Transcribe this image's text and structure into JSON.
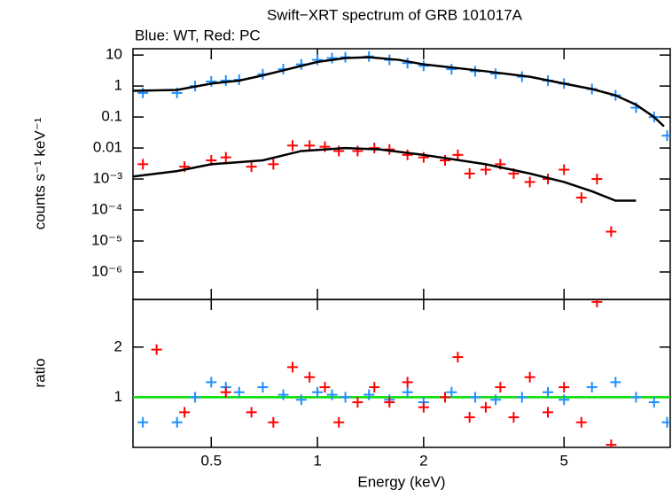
{
  "chart_data": [
    {
      "type": "scatter",
      "title": "Swift−XRT spectrum of GRB 101017A",
      "subtitle": "Blue: WT, Red: PC",
      "ylabel": "counts s⁻¹ keV⁻¹",
      "log_x": true,
      "log_y": true,
      "xlim": [
        0.3,
        10
      ],
      "xticks": [
        0.5,
        1,
        2,
        5
      ],
      "ylim": [
        1.3e-07,
        16
      ],
      "yticks": [
        10,
        1,
        0.1,
        0.01,
        {
          "value": 0.001,
          "label": "10⁻³"
        },
        {
          "value": 0.0001,
          "label": "10⁻⁴"
        },
        {
          "value": 1e-05,
          "label": "10⁻⁵"
        },
        {
          "value": 1e-06,
          "label": "10⁻⁶"
        }
      ],
      "series": [
        {
          "color": "#1e8fff",
          "x": [
            0.32,
            0.4,
            0.45,
            0.5,
            0.55,
            0.6,
            0.7,
            0.8,
            0.9,
            1.0,
            1.1,
            1.2,
            1.4,
            1.6,
            1.8,
            2.0,
            2.4,
            2.8,
            3.2,
            3.8,
            4.5,
            5,
            6,
            7,
            8,
            9,
            9.8
          ],
          "values": [
            0.6,
            0.6,
            1.0,
            1.4,
            1.5,
            1.6,
            2.4,
            3.5,
            5,
            7,
            8,
            8.5,
            9,
            7,
            5.5,
            4.5,
            3.5,
            3,
            2.5,
            2,
            1.5,
            1.2,
            0.8,
            0.5,
            0.2,
            0.1,
            0.025
          ]
        },
        {
          "color": "#ff0000",
          "x": [
            0.32,
            0.42,
            0.5,
            0.55,
            0.65,
            0.75,
            0.85,
            0.95,
            1.05,
            1.15,
            1.3,
            1.45,
            1.6,
            1.8,
            2.0,
            2.3,
            2.5,
            2.7,
            3.0,
            3.3,
            3.6,
            4.0,
            4.5,
            5.0,
            5.6,
            6.2,
            6.8
          ],
          "values": [
            0.003,
            0.0025,
            0.004,
            0.005,
            0.0025,
            0.003,
            0.012,
            0.012,
            0.011,
            0.008,
            0.008,
            0.01,
            0.009,
            0.006,
            0.005,
            0.004,
            0.006,
            0.0015,
            0.002,
            0.003,
            0.0015,
            0.0008,
            0.001,
            0.002,
            0.00025,
            0.001,
            2e-05
          ]
        }
      ],
      "models": [
        {
          "color": "#000000",
          "x": [
            0.3,
            0.4,
            0.5,
            0.6,
            0.7,
            0.8,
            1,
            1.2,
            1.4,
            1.7,
            2,
            3,
            4,
            5,
            6,
            7,
            8,
            9,
            9.6
          ],
          "values": [
            0.7,
            0.75,
            1.2,
            1.5,
            2.2,
            3.2,
            6,
            8,
            8.5,
            7,
            5,
            3,
            2,
            1.2,
            0.8,
            0.5,
            0.25,
            0.1,
            0.05
          ]
        },
        {
          "color": "#000000",
          "x": [
            0.3,
            0.4,
            0.5,
            0.7,
            0.9,
            1.2,
            1.5,
            2,
            3,
            4,
            5,
            6,
            7,
            8
          ],
          "values": [
            0.0012,
            0.0018,
            0.003,
            0.004,
            0.008,
            0.01,
            0.009,
            0.006,
            0.003,
            0.0015,
            0.0008,
            0.0004,
            0.0002,
            0.0002
          ]
        }
      ]
    },
    {
      "type": "scatter",
      "xlabel": "Energy (keV)",
      "ylabel": "ratio",
      "log_x": true,
      "log_y": false,
      "xlim": [
        0.3,
        10
      ],
      "xticks": [
        0.5,
        1,
        2,
        5
      ],
      "ylim": [
        0,
        2.95
      ],
      "yticks": [
        1,
        2
      ],
      "reference_line": {
        "value": 1,
        "color": "#00e000"
      },
      "series": [
        {
          "color": "#1e8fff",
          "x": [
            0.32,
            0.4,
            0.45,
            0.5,
            0.55,
            0.6,
            0.7,
            0.8,
            0.9,
            1.0,
            1.1,
            1.2,
            1.4,
            1.6,
            1.8,
            2.0,
            2.4,
            2.8,
            3.2,
            3.8,
            4.5,
            5,
            6,
            7,
            8,
            9,
            9.8
          ],
          "values": [
            0.5,
            0.5,
            1.0,
            1.3,
            1.2,
            1.1,
            1.2,
            1.05,
            0.95,
            1.1,
            1.05,
            1.0,
            1.05,
            0.95,
            1.1,
            0.9,
            1.1,
            1.0,
            0.95,
            1.0,
            1.1,
            0.95,
            1.2,
            1.3,
            1.0,
            0.9,
            0.5
          ]
        },
        {
          "color": "#ff0000",
          "x": [
            0.35,
            0.42,
            0.55,
            0.65,
            0.75,
            0.85,
            0.95,
            1.05,
            1.15,
            1.3,
            1.45,
            1.6,
            1.8,
            2.0,
            2.3,
            2.5,
            2.7,
            3.0,
            3.3,
            3.6,
            4.0,
            4.5,
            5.0,
            5.6,
            6.2,
            6.8
          ],
          "values": [
            1.95,
            0.7,
            1.1,
            0.7,
            0.5,
            1.6,
            1.4,
            1.2,
            0.5,
            0.9,
            1.2,
            0.9,
            1.3,
            0.8,
            1.0,
            1.8,
            0.6,
            0.8,
            1.2,
            0.6,
            1.4,
            0.7,
            1.2,
            0.5,
            2.9,
            0.05
          ]
        }
      ]
    }
  ]
}
